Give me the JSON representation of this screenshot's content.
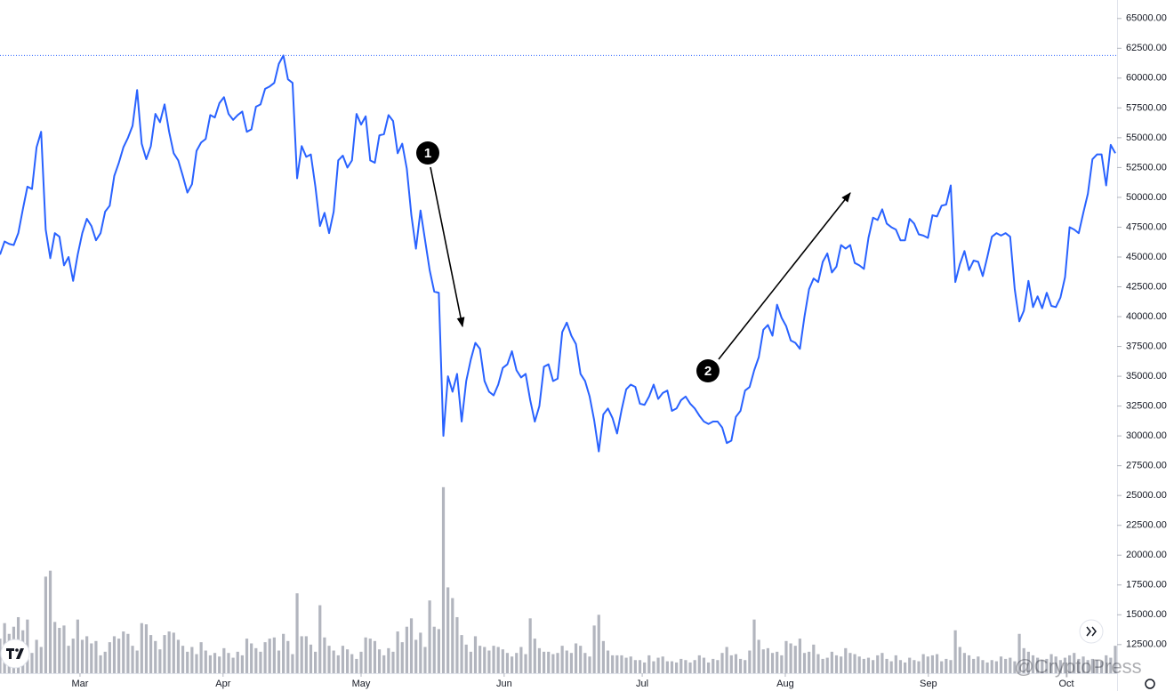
{
  "chart_data": {
    "type": "line",
    "series": [
      {
        "name": "Price",
        "color": "#2962ff",
        "values": [
          45200,
          46300,
          46100,
          46000,
          47000,
          49000,
          50900,
          50700,
          54200,
          55500,
          47300,
          44900,
          47000,
          46700,
          44300,
          45000,
          43000,
          45200,
          47000,
          48200,
          47600,
          46400,
          47000,
          48800,
          49300,
          51800,
          52900,
          54200,
          55000,
          56000,
          59000,
          54500,
          53200,
          54300,
          57000,
          56300,
          57800,
          55500,
          53700,
          53100,
          51800,
          50400,
          51100,
          53900,
          54600,
          54900,
          56900,
          56700,
          57900,
          58400,
          57000,
          56500,
          56900,
          57200,
          55500,
          55700,
          57600,
          57800,
          59100,
          59300,
          59600,
          61200,
          61900,
          59900,
          59600,
          51600,
          54300,
          53400,
          53600,
          50900,
          47600,
          48700,
          47000,
          48800,
          53100,
          53500,
          52500,
          53100,
          57000,
          56100,
          56800,
          53100,
          52900,
          55200,
          55300,
          56900,
          56400,
          53700,
          54500,
          52400,
          48500,
          45700,
          48900,
          46400,
          43900,
          42100,
          42000,
          30000,
          35000,
          33700,
          35200,
          31200,
          34600,
          36400,
          37800,
          37300,
          34600,
          33700,
          33400,
          34300,
          35700,
          36000,
          37100,
          35500,
          34900,
          35200,
          33000,
          31200,
          32500,
          35800,
          36000,
          34600,
          34800,
          38700,
          39500,
          38400,
          37700,
          35200,
          34600,
          33300,
          31300,
          28700,
          31800,
          32300,
          31500,
          30200,
          32200,
          33900,
          34300,
          34100,
          32700,
          32600,
          33300,
          34300,
          33100,
          33600,
          33800,
          32100,
          32300,
          33000,
          33300,
          32700,
          32300,
          31700,
          31200,
          31000,
          31200,
          31200,
          30700,
          29400,
          29600,
          31600,
          32100,
          33800,
          34100,
          35500,
          36600,
          38900,
          39300,
          38400,
          41000,
          39900,
          39200,
          38000,
          37800,
          37300,
          40000,
          42300,
          43200,
          42900,
          44600,
          45300,
          43700,
          44200,
          46000,
          45700,
          46000,
          44500,
          44300,
          44000,
          46600,
          48300,
          48100,
          49000,
          47800,
          47500,
          47300,
          46400,
          46400,
          48200,
          47800,
          46900,
          46800,
          46600,
          48500,
          48400,
          49300,
          49400,
          51000,
          42900,
          44400,
          45500,
          43900,
          44700,
          44600,
          43400,
          45000,
          46700,
          47000,
          46800,
          47000,
          46700,
          42300,
          39600,
          40500,
          43000,
          40800,
          41700,
          40700,
          42000,
          40900,
          40800,
          41600,
          43300,
          47500,
          47300,
          47000,
          48700,
          50300,
          53200,
          53600,
          53600,
          51000,
          54400,
          53700
        ]
      },
      {
        "name": "Volume",
        "type": "bar",
        "color": "#b2b5be",
        "values": [
          13000,
          14300,
          13400,
          14000,
          14800,
          13700,
          14600,
          11800,
          12900,
          12300,
          18200,
          18700,
          14400,
          13900,
          14100,
          12400,
          13000,
          14600,
          12900,
          13200,
          12600,
          12800,
          11600,
          11900,
          12700,
          13200,
          13000,
          13600,
          13400,
          12400,
          12000,
          14300,
          14200,
          13300,
          12800,
          12100,
          13300,
          13600,
          13500,
          12900,
          12400,
          11900,
          12300,
          11700,
          12700,
          12000,
          11600,
          11800,
          11500,
          12200,
          11800,
          11400,
          11900,
          11600,
          13000,
          12600,
          12200,
          11900,
          12700,
          13000,
          13100,
          12000,
          13400,
          12800,
          11700,
          16800,
          13200,
          13200,
          12500,
          11900,
          15800,
          13100,
          12400,
          12000,
          11600,
          12400,
          12100,
          11700,
          11300,
          11900,
          13100,
          13000,
          12800,
          12100,
          11600,
          12200,
          11900,
          13600,
          12700,
          14000,
          14700,
          12900,
          13500,
          12300,
          16200,
          14000,
          13800,
          25700,
          17300,
          16400,
          14800,
          13300,
          12500,
          11900,
          13200,
          12400,
          12300,
          12000,
          12400,
          12300,
          12100,
          11800,
          11500,
          11800,
          12300,
          11700,
          14700,
          13000,
          12200,
          11900,
          11900,
          11700,
          11800,
          12400,
          12000,
          11800,
          12600,
          12400,
          11800,
          11500,
          14100,
          15000,
          12800,
          12000,
          11600,
          11600,
          11600,
          11400,
          11500,
          11200,
          11200,
          11000,
          11600,
          11100,
          11400,
          11500,
          11100,
          11100,
          11000,
          11300,
          11200,
          11000,
          11200,
          11600,
          11400,
          11000,
          11300,
          11200,
          11800,
          12300,
          11600,
          11700,
          11300,
          11200,
          12000,
          14600,
          12900,
          12100,
          12200,
          11800,
          11900,
          11600,
          12800,
          12600,
          12400,
          13000,
          11800,
          11900,
          12500,
          11700,
          11300,
          11400,
          11900,
          11600,
          11500,
          12200,
          11800,
          11700,
          11500,
          11300,
          11400,
          11200,
          11600,
          11800,
          11300,
          11100,
          11600,
          11200,
          11000,
          11400,
          11200,
          11100,
          11700,
          11500,
          11600,
          11700,
          11100,
          11300,
          11200,
          13700,
          12300,
          11800,
          11600,
          11300,
          11500,
          11200,
          11000,
          11200,
          11100,
          11500,
          11300,
          11400,
          11100,
          13400,
          12200,
          11900,
          11600,
          11400,
          11200,
          11300,
          11700,
          11500,
          11200,
          11400,
          11600,
          11800,
          11300,
          11500,
          11200,
          11300,
          11200,
          11100,
          11600,
          11400,
          12400
        ]
      }
    ],
    "xlim": [
      0,
      244
    ],
    "xticks": [
      {
        "value": 17.5,
        "label": "Mar"
      },
      {
        "value": 48.8,
        "label": "Apr"
      },
      {
        "value": 79,
        "label": "May"
      },
      {
        "value": 110.3,
        "label": "Jun"
      },
      {
        "value": 140.5,
        "label": "Jul"
      },
      {
        "value": 171.8,
        "label": "Aug"
      },
      {
        "value": 203.1,
        "label": "Sep"
      },
      {
        "value": 233.3,
        "label": "Oct"
      }
    ],
    "ylim": [
      10100,
      66550
    ],
    "yticks": [
      {
        "value": 65000,
        "label": "65000.00"
      },
      {
        "value": 62500,
        "label": "62500.00"
      },
      {
        "value": 60000,
        "label": "60000.00"
      },
      {
        "value": 57500,
        "label": "57500.00"
      },
      {
        "value": 55000,
        "label": "55000.00"
      },
      {
        "value": 52500,
        "label": "52500.00"
      },
      {
        "value": 50000,
        "label": "50000.00"
      },
      {
        "value": 47500,
        "label": "47500.00"
      },
      {
        "value": 45000,
        "label": "45000.00"
      },
      {
        "value": 42500,
        "label": "42500.00"
      },
      {
        "value": 40000,
        "label": "40000.00"
      },
      {
        "value": 37500,
        "label": "37500.00"
      },
      {
        "value": 35000,
        "label": "35000.00"
      },
      {
        "value": 32500,
        "label": "32500.00"
      },
      {
        "value": 30000,
        "label": "30000.00"
      },
      {
        "value": 27500,
        "label": "27500.00"
      },
      {
        "value": 25000,
        "label": "25000.00"
      },
      {
        "value": 22500,
        "label": "22500.00"
      },
      {
        "value": 20000,
        "label": "20000.00"
      },
      {
        "value": 17500,
        "label": "17500.00"
      },
      {
        "value": 15000,
        "label": "15000.00"
      },
      {
        "value": 12500,
        "label": "12500.00"
      }
    ],
    "annotations": [
      {
        "label": "1"
      },
      {
        "label": "2"
      }
    ],
    "watermark": "@CryptoPress"
  }
}
